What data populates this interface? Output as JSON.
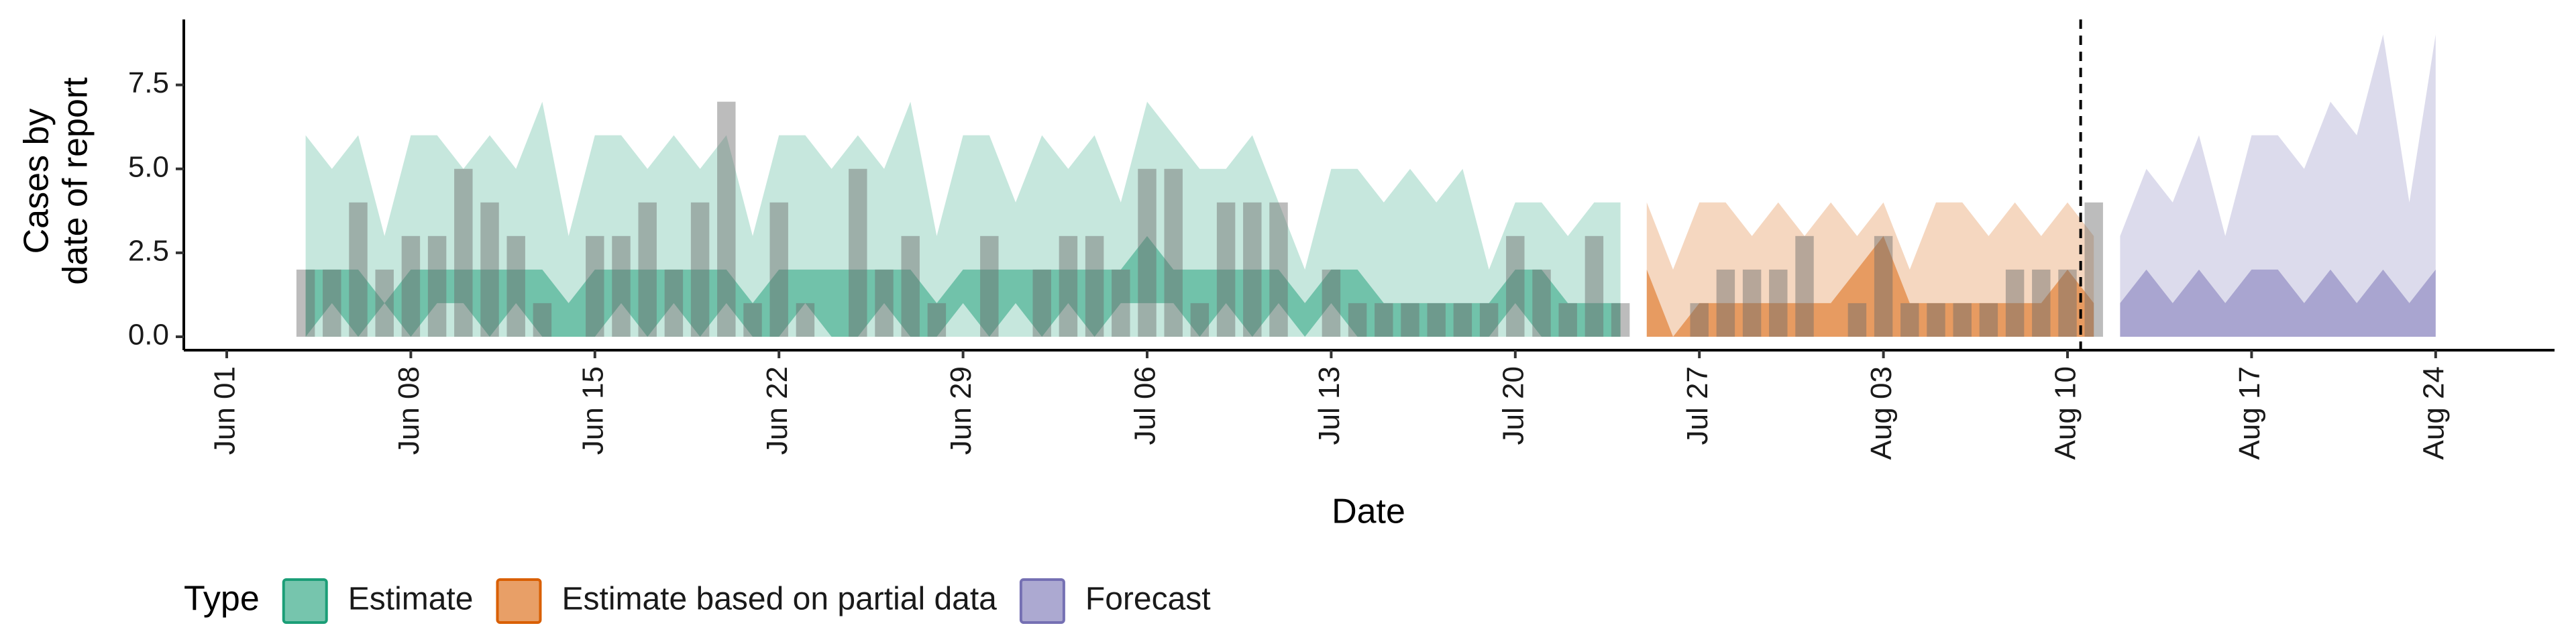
{
  "chart_data": {
    "type": "band",
    "ylabel": [
      "Cases by",
      "date of report"
    ],
    "xlabel": "Date",
    "legend_title": "Type",
    "legend_position": "bottom",
    "ylim": [
      -0.4,
      9.45
    ],
    "yticks": [
      {
        "value": 0,
        "label": "0.0"
      },
      {
        "value": 2.5,
        "label": "2.5"
      },
      {
        "value": 5,
        "label": "5.0"
      },
      {
        "value": 7.5,
        "label": "7.5"
      }
    ],
    "x": [
      "Jun 01",
      "Jun 02",
      "Jun 03",
      "Jun 04",
      "Jun 05",
      "Jun 06",
      "Jun 07",
      "Jun 08",
      "Jun 09",
      "Jun 10",
      "Jun 11",
      "Jun 12",
      "Jun 13",
      "Jun 14",
      "Jun 15",
      "Jun 16",
      "Jun 17",
      "Jun 18",
      "Jun 19",
      "Jun 20",
      "Jun 21",
      "Jun 22",
      "Jun 23",
      "Jun 24",
      "Jun 25",
      "Jun 26",
      "Jun 27",
      "Jun 28",
      "Jun 29",
      "Jun 30",
      "Jul 01",
      "Jul 02",
      "Jul 03",
      "Jul 04",
      "Jul 05",
      "Jul 06",
      "Jul 07",
      "Jul 08",
      "Jul 09",
      "Jul 10",
      "Jul 11",
      "Jul 12",
      "Jul 13",
      "Jul 14",
      "Jul 15",
      "Jul 16",
      "Jul 17",
      "Jul 18",
      "Jul 19",
      "Jul 20",
      "Jul 21",
      "Jul 22",
      "Jul 23",
      "Jul 24",
      "Jul 25",
      "Jul 26",
      "Jul 27",
      "Jul 28",
      "Jul 29",
      "Jul 30",
      "Jul 31",
      "Aug 01",
      "Aug 02",
      "Aug 03",
      "Aug 04",
      "Aug 05",
      "Aug 06",
      "Aug 07",
      "Aug 08",
      "Aug 09",
      "Aug 10",
      "Aug 11",
      "Aug 12",
      "Aug 13",
      "Aug 14",
      "Aug 15",
      "Aug 16",
      "Aug 17",
      "Aug 18",
      "Aug 19",
      "Aug 20",
      "Aug 21",
      "Aug 22",
      "Aug 23",
      "Aug 24"
    ],
    "xticks": [
      "Jun 01",
      "Jun 08",
      "Jun 15",
      "Jun 22",
      "Jun 29",
      "Jul 06",
      "Jul 13",
      "Jul 20",
      "Jul 27",
      "Aug 03",
      "Aug 10",
      "Aug 17",
      "Aug 24"
    ],
    "vline": "Aug 11",
    "bar_color": "#6b6b6b",
    "reported": [
      null,
      null,
      null,
      2,
      2,
      4,
      2,
      3,
      3,
      5,
      4,
      3,
      1,
      0,
      3,
      3,
      4,
      2,
      4,
      7,
      1,
      4,
      1,
      0,
      5,
      2,
      3,
      1,
      0,
      3,
      0,
      2,
      3,
      3,
      2,
      5,
      5,
      1,
      4,
      4,
      4,
      0,
      2,
      1,
      1,
      1,
      1,
      1,
      1,
      3,
      2,
      1,
      3,
      1,
      0,
      0,
      1,
      2,
      2,
      2,
      3,
      0,
      1,
      3,
      1,
      1,
      1,
      1,
      2,
      2,
      2,
      4,
      null,
      null,
      null,
      null,
      null,
      null,
      null,
      null,
      null,
      null,
      null,
      null,
      null
    ],
    "series": [
      {
        "name": "Estimate",
        "color": "#1b9e77",
        "upper_outer": [
          null,
          null,
          null,
          6,
          5,
          6,
          3,
          6,
          6,
          5,
          6,
          5,
          7,
          3,
          6,
          6,
          5,
          6,
          5,
          6,
          3,
          6,
          6,
          5,
          6,
          5,
          7,
          3,
          6,
          6,
          4,
          6,
          5,
          6,
          4,
          7,
          6,
          5,
          5,
          6,
          4,
          2,
          5,
          5,
          4,
          5,
          4,
          5,
          2,
          4,
          4,
          3,
          4,
          4,
          null,
          null,
          null,
          null,
          null,
          null,
          null,
          null,
          null,
          null,
          null,
          null,
          null,
          null,
          null,
          null,
          null,
          null,
          null,
          null,
          null,
          null,
          null,
          null,
          null,
          null,
          null,
          null,
          null,
          null,
          null
        ],
        "lower_outer": [
          null,
          null,
          null,
          0,
          0,
          0,
          0,
          0,
          0,
          0,
          0,
          0,
          0,
          0,
          0,
          0,
          0,
          0,
          0,
          0,
          0,
          0,
          0,
          0,
          0,
          0,
          0,
          0,
          0,
          0,
          0,
          0,
          0,
          0,
          0,
          0,
          0,
          0,
          0,
          0,
          0,
          0,
          0,
          0,
          0,
          0,
          0,
          0,
          0,
          0,
          0,
          0,
          0,
          0,
          null,
          null,
          null,
          null,
          null,
          null,
          null,
          null,
          null,
          null,
          null,
          null,
          null,
          null,
          null,
          null,
          null,
          null,
          null,
          null,
          null,
          null,
          null,
          null,
          null,
          null,
          null,
          null,
          null,
          null,
          null
        ],
        "upper_inner": [
          null,
          null,
          null,
          2,
          2,
          2,
          1,
          2,
          2,
          2,
          2,
          2,
          2,
          1,
          2,
          2,
          2,
          2,
          2,
          2,
          1,
          2,
          2,
          2,
          2,
          2,
          2,
          1,
          2,
          2,
          2,
          2,
          2,
          2,
          2,
          3,
          2,
          2,
          2,
          2,
          2,
          1,
          2,
          2,
          1,
          1,
          1,
          1,
          1,
          2,
          2,
          1,
          1,
          1,
          null,
          null,
          null,
          null,
          null,
          null,
          null,
          null,
          null,
          null,
          null,
          null,
          null,
          null,
          null,
          null,
          null,
          null,
          null,
          null,
          null,
          null,
          null,
          null,
          null,
          null,
          null,
          null,
          null,
          null,
          null
        ],
        "lower_inner": [
          null,
          null,
          null,
          0,
          1,
          0,
          1,
          0,
          1,
          1,
          0,
          1,
          0,
          0,
          0,
          1,
          0,
          1,
          0,
          1,
          0,
          0,
          1,
          0,
          0,
          1,
          0,
          0,
          1,
          0,
          1,
          0,
          1,
          0,
          1,
          1,
          1,
          0,
          1,
          0,
          1,
          0,
          1,
          0,
          0,
          0,
          0,
          0,
          0,
          1,
          0,
          0,
          0,
          0,
          null,
          null,
          null,
          null,
          null,
          null,
          null,
          null,
          null,
          null,
          null,
          null,
          null,
          null,
          null,
          null,
          null,
          null,
          null,
          null,
          null,
          null,
          null,
          null,
          null,
          null,
          null,
          null,
          null,
          null,
          null
        ]
      },
      {
        "name": "Estimate based on partial data",
        "color": "#d95f02",
        "upper_outer": [
          null,
          null,
          null,
          null,
          null,
          null,
          null,
          null,
          null,
          null,
          null,
          null,
          null,
          null,
          null,
          null,
          null,
          null,
          null,
          null,
          null,
          null,
          null,
          null,
          null,
          null,
          null,
          null,
          null,
          null,
          null,
          null,
          null,
          null,
          null,
          null,
          null,
          null,
          null,
          null,
          null,
          null,
          null,
          null,
          null,
          null,
          null,
          null,
          null,
          null,
          null,
          null,
          null,
          null,
          4,
          2,
          4,
          4,
          3,
          4,
          3,
          4,
          3,
          4,
          2,
          4,
          4,
          3,
          4,
          3,
          4,
          3,
          null,
          null,
          null,
          null,
          null,
          null,
          null,
          null,
          null,
          null,
          null,
          null,
          null
        ],
        "lower_outer": [
          null,
          null,
          null,
          null,
          null,
          null,
          null,
          null,
          null,
          null,
          null,
          null,
          null,
          null,
          null,
          null,
          null,
          null,
          null,
          null,
          null,
          null,
          null,
          null,
          null,
          null,
          null,
          null,
          null,
          null,
          null,
          null,
          null,
          null,
          null,
          null,
          null,
          null,
          null,
          null,
          null,
          null,
          null,
          null,
          null,
          null,
          null,
          null,
          null,
          null,
          null,
          null,
          null,
          null,
          0,
          0,
          0,
          0,
          0,
          0,
          0,
          0,
          0,
          0,
          0,
          0,
          0,
          0,
          0,
          0,
          0,
          0,
          null,
          null,
          null,
          null,
          null,
          null,
          null,
          null,
          null,
          null,
          null,
          null,
          null
        ],
        "upper_inner": [
          null,
          null,
          null,
          null,
          null,
          null,
          null,
          null,
          null,
          null,
          null,
          null,
          null,
          null,
          null,
          null,
          null,
          null,
          null,
          null,
          null,
          null,
          null,
          null,
          null,
          null,
          null,
          null,
          null,
          null,
          null,
          null,
          null,
          null,
          null,
          null,
          null,
          null,
          null,
          null,
          null,
          null,
          null,
          null,
          null,
          null,
          null,
          null,
          null,
          null,
          null,
          null,
          null,
          null,
          2,
          0,
          1,
          1,
          1,
          1,
          1,
          1,
          2,
          3,
          1,
          1,
          1,
          1,
          1,
          1,
          2,
          1,
          null,
          null,
          null,
          null,
          null,
          null,
          null,
          null,
          null,
          null,
          null,
          null,
          null
        ],
        "lower_inner": [
          null,
          null,
          null,
          null,
          null,
          null,
          null,
          null,
          null,
          null,
          null,
          null,
          null,
          null,
          null,
          null,
          null,
          null,
          null,
          null,
          null,
          null,
          null,
          null,
          null,
          null,
          null,
          null,
          null,
          null,
          null,
          null,
          null,
          null,
          null,
          null,
          null,
          null,
          null,
          null,
          null,
          null,
          null,
          null,
          null,
          null,
          null,
          null,
          null,
          null,
          null,
          null,
          null,
          null,
          0,
          0,
          0,
          0,
          0,
          0,
          0,
          0,
          0,
          0,
          0,
          0,
          0,
          0,
          0,
          0,
          0,
          0,
          null,
          null,
          null,
          null,
          null,
          null,
          null,
          null,
          null,
          null,
          null,
          null,
          null
        ]
      },
      {
        "name": "Forecast",
        "color": "#7570b3",
        "upper_outer": [
          null,
          null,
          null,
          null,
          null,
          null,
          null,
          null,
          null,
          null,
          null,
          null,
          null,
          null,
          null,
          null,
          null,
          null,
          null,
          null,
          null,
          null,
          null,
          null,
          null,
          null,
          null,
          null,
          null,
          null,
          null,
          null,
          null,
          null,
          null,
          null,
          null,
          null,
          null,
          null,
          null,
          null,
          null,
          null,
          null,
          null,
          null,
          null,
          null,
          null,
          null,
          null,
          null,
          null,
          null,
          null,
          null,
          null,
          null,
          null,
          null,
          null,
          null,
          null,
          null,
          null,
          null,
          null,
          null,
          null,
          null,
          null,
          3,
          5,
          4,
          6,
          3,
          6,
          6,
          5,
          7,
          6,
          9,
          4,
          9
        ],
        "lower_outer": [
          null,
          null,
          null,
          null,
          null,
          null,
          null,
          null,
          null,
          null,
          null,
          null,
          null,
          null,
          null,
          null,
          null,
          null,
          null,
          null,
          null,
          null,
          null,
          null,
          null,
          null,
          null,
          null,
          null,
          null,
          null,
          null,
          null,
          null,
          null,
          null,
          null,
          null,
          null,
          null,
          null,
          null,
          null,
          null,
          null,
          null,
          null,
          null,
          null,
          null,
          null,
          null,
          null,
          null,
          null,
          null,
          null,
          null,
          null,
          null,
          null,
          null,
          null,
          null,
          null,
          null,
          null,
          null,
          null,
          null,
          null,
          null,
          0,
          0,
          0,
          0,
          0,
          0,
          0,
          0,
          0,
          0,
          0,
          0,
          0
        ],
        "upper_inner": [
          null,
          null,
          null,
          null,
          null,
          null,
          null,
          null,
          null,
          null,
          null,
          null,
          null,
          null,
          null,
          null,
          null,
          null,
          null,
          null,
          null,
          null,
          null,
          null,
          null,
          null,
          null,
          null,
          null,
          null,
          null,
          null,
          null,
          null,
          null,
          null,
          null,
          null,
          null,
          null,
          null,
          null,
          null,
          null,
          null,
          null,
          null,
          null,
          null,
          null,
          null,
          null,
          null,
          null,
          null,
          null,
          null,
          null,
          null,
          null,
          null,
          null,
          null,
          null,
          null,
          null,
          null,
          null,
          null,
          null,
          null,
          null,
          1,
          2,
          1,
          2,
          1,
          2,
          2,
          1,
          2,
          1,
          2,
          1,
          2
        ],
        "lower_inner": [
          null,
          null,
          null,
          null,
          null,
          null,
          null,
          null,
          null,
          null,
          null,
          null,
          null,
          null,
          null,
          null,
          null,
          null,
          null,
          null,
          null,
          null,
          null,
          null,
          null,
          null,
          null,
          null,
          null,
          null,
          null,
          null,
          null,
          null,
          null,
          null,
          null,
          null,
          null,
          null,
          null,
          null,
          null,
          null,
          null,
          null,
          null,
          null,
          null,
          null,
          null,
          null,
          null,
          null,
          null,
          null,
          null,
          null,
          null,
          null,
          null,
          null,
          null,
          null,
          null,
          null,
          null,
          null,
          null,
          null,
          null,
          null,
          0,
          0,
          0,
          0,
          0,
          0,
          0,
          0,
          0,
          0,
          0,
          0,
          0
        ]
      }
    ]
  }
}
